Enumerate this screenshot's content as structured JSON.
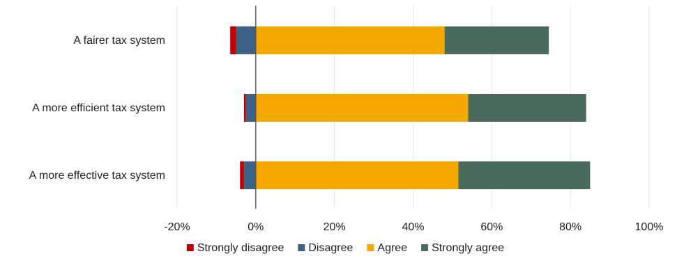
{
  "chart_data": {
    "type": "bar",
    "orientation": "horizontal",
    "stacked": "diverging",
    "title": "",
    "xlabel": "",
    "ylabel": "",
    "categories": [
      "A fairer tax system",
      "A more efficient tax system",
      "A more effective tax system"
    ],
    "series": [
      {
        "name": "Strongly disagree",
        "color": "#c00000",
        "values": [
          -1.5,
          -0.5,
          -1.0
        ]
      },
      {
        "name": "Disagree",
        "color": "#3d6285",
        "values": [
          -5.0,
          -2.5,
          -3.0
        ]
      },
      {
        "name": "Agree",
        "color": "#f5a800",
        "values": [
          48.0,
          54.0,
          51.5
        ]
      },
      {
        "name": "Strongly agree",
        "color": "#4a6b5c",
        "values": [
          26.5,
          30.0,
          33.5
        ]
      }
    ],
    "xlim": [
      -20,
      100
    ],
    "xticks": [
      -20,
      0,
      20,
      40,
      60,
      80,
      100
    ],
    "tick_labels": [
      "-20%",
      "0%",
      "20%",
      "40%",
      "60%",
      "80%",
      "100%"
    ],
    "grid": true,
    "legend_position": "bottom"
  }
}
